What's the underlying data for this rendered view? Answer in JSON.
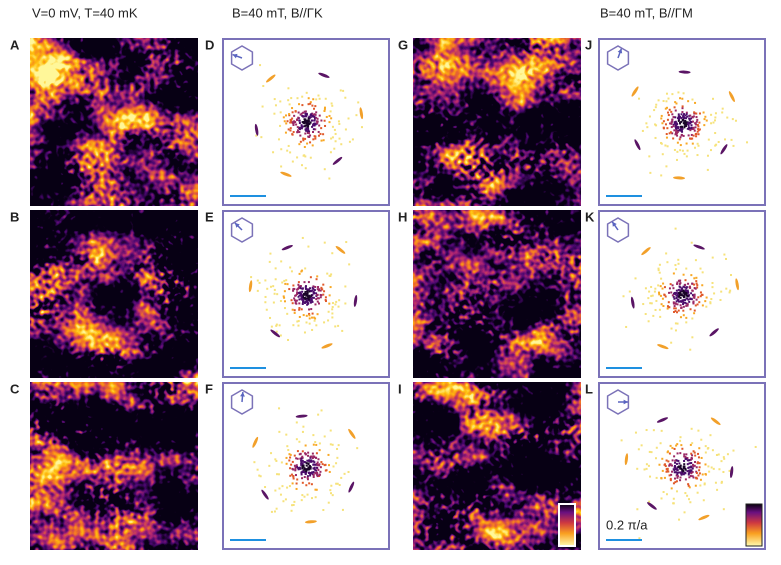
{
  "header": {
    "left": "V=0 mV, T=40 mK",
    "middle": "B=40 mT, B//ΓK",
    "right": "B=40 mT, B//ΓM"
  },
  "panels": [
    "A",
    "B",
    "C",
    "D",
    "E",
    "F",
    "G",
    "H",
    "I",
    "J",
    "K",
    "L"
  ],
  "scale_bar": "0.2 π/a"
}
